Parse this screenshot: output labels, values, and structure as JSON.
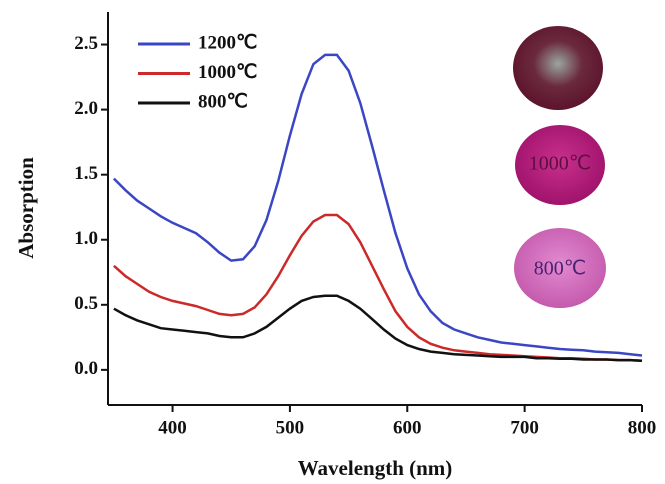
{
  "chart_data": {
    "type": "line",
    "xlabel": "Wavelength (nm)",
    "ylabel": "Absorption",
    "x": [
      350,
      360,
      370,
      380,
      390,
      400,
      410,
      420,
      430,
      440,
      450,
      460,
      470,
      480,
      490,
      500,
      510,
      520,
      530,
      540,
      550,
      560,
      570,
      580,
      590,
      600,
      610,
      620,
      630,
      640,
      650,
      660,
      670,
      680,
      690,
      700,
      710,
      720,
      730,
      740,
      750,
      760,
      770,
      780,
      790,
      800
    ],
    "series": [
      {
        "name": "1200℃",
        "color": "#3a46c4",
        "values": [
          1.47,
          1.38,
          1.3,
          1.24,
          1.18,
          1.13,
          1.09,
          1.05,
          0.98,
          0.9,
          0.84,
          0.85,
          0.95,
          1.15,
          1.45,
          1.8,
          2.12,
          2.35,
          2.42,
          2.42,
          2.3,
          2.05,
          1.72,
          1.38,
          1.05,
          0.78,
          0.58,
          0.45,
          0.36,
          0.31,
          0.28,
          0.25,
          0.23,
          0.21,
          0.2,
          0.19,
          0.18,
          0.17,
          0.16,
          0.155,
          0.15,
          0.14,
          0.135,
          0.13,
          0.12,
          0.11
        ]
      },
      {
        "name": "1000℃",
        "color": "#cc2a2a",
        "values": [
          0.8,
          0.72,
          0.66,
          0.6,
          0.56,
          0.53,
          0.51,
          0.49,
          0.46,
          0.43,
          0.42,
          0.43,
          0.48,
          0.58,
          0.72,
          0.88,
          1.03,
          1.14,
          1.19,
          1.19,
          1.12,
          0.98,
          0.8,
          0.62,
          0.45,
          0.33,
          0.25,
          0.2,
          0.17,
          0.15,
          0.14,
          0.13,
          0.12,
          0.115,
          0.11,
          0.105,
          0.1,
          0.095,
          0.09,
          0.09,
          0.085,
          0.08,
          0.08,
          0.075,
          0.075,
          0.07
        ]
      },
      {
        "name": "800℃",
        "color": "#111111",
        "values": [
          0.47,
          0.42,
          0.38,
          0.35,
          0.32,
          0.31,
          0.3,
          0.29,
          0.28,
          0.26,
          0.25,
          0.25,
          0.28,
          0.33,
          0.4,
          0.47,
          0.53,
          0.56,
          0.57,
          0.57,
          0.53,
          0.47,
          0.39,
          0.31,
          0.24,
          0.19,
          0.16,
          0.14,
          0.13,
          0.12,
          0.115,
          0.11,
          0.105,
          0.1,
          0.1,
          0.1,
          0.09,
          0.09,
          0.085,
          0.085,
          0.08,
          0.08,
          0.08,
          0.075,
          0.075,
          0.07
        ]
      }
    ],
    "xlim": [
      345,
      800
    ],
    "ylim": [
      -0.27,
      2.75
    ],
    "xticks": [
      400,
      500,
      600,
      700,
      800
    ],
    "yticks": [
      {
        "value": 0,
        "label": "0.0"
      },
      0.5,
      {
        "value": 1,
        "label": "1.0"
      },
      1.5,
      {
        "value": 2,
        "label": "2.0"
      },
      2.5
    ],
    "legend": "upper left",
    "annotations": [
      "1000℃",
      "800℃"
    ]
  }
}
